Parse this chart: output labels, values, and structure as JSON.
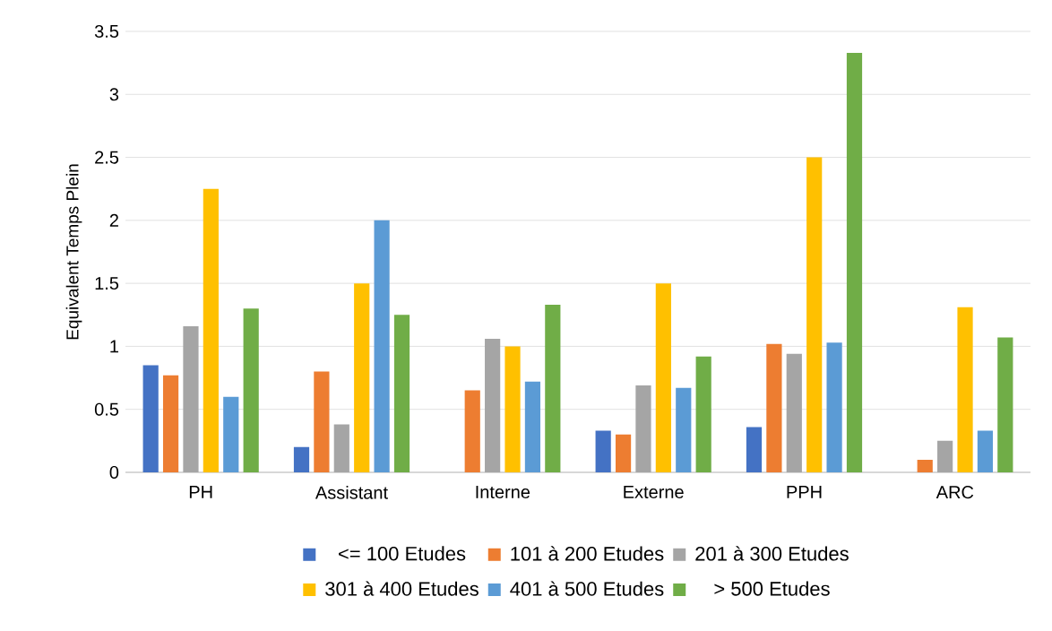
{
  "chart_data": {
    "type": "bar",
    "ylabel": "Equivalent Temps Plein",
    "categories": [
      "PH",
      "Assistant",
      "Interne",
      "Externe",
      "PPH",
      "ARC"
    ],
    "series": [
      {
        "name": "<= 100 Etudes",
        "color": "#4472c4",
        "values": [
          0.85,
          0.2,
          null,
          0.33,
          0.36,
          null
        ]
      },
      {
        "name": "101 à 200 Etudes",
        "color": "#ed7d31",
        "values": [
          0.77,
          0.8,
          0.65,
          0.3,
          1.02,
          0.1
        ]
      },
      {
        "name": "201 à 300 Etudes",
        "color": "#a5a5a5",
        "values": [
          1.16,
          0.38,
          1.06,
          0.69,
          0.94,
          0.25
        ]
      },
      {
        "name": "301 à 400 Etudes",
        "color": "#ffc000",
        "values": [
          2.25,
          1.5,
          1.0,
          1.5,
          2.5,
          1.31
        ]
      },
      {
        "name": "401 à 500 Etudes",
        "color": "#5b9bd5",
        "values": [
          0.6,
          2.0,
          0.72,
          0.67,
          1.03,
          0.33
        ]
      },
      {
        "name": "> 500 Etudes",
        "color": "#70ad47",
        "values": [
          1.3,
          1.25,
          1.33,
          0.92,
          3.33,
          1.07
        ]
      }
    ],
    "ylim": [
      0,
      3.5
    ],
    "yticks": [
      0,
      0.5,
      1,
      1.5,
      2,
      2.5,
      3,
      3.5
    ],
    "grid": "y",
    "legend": "bottom"
  }
}
